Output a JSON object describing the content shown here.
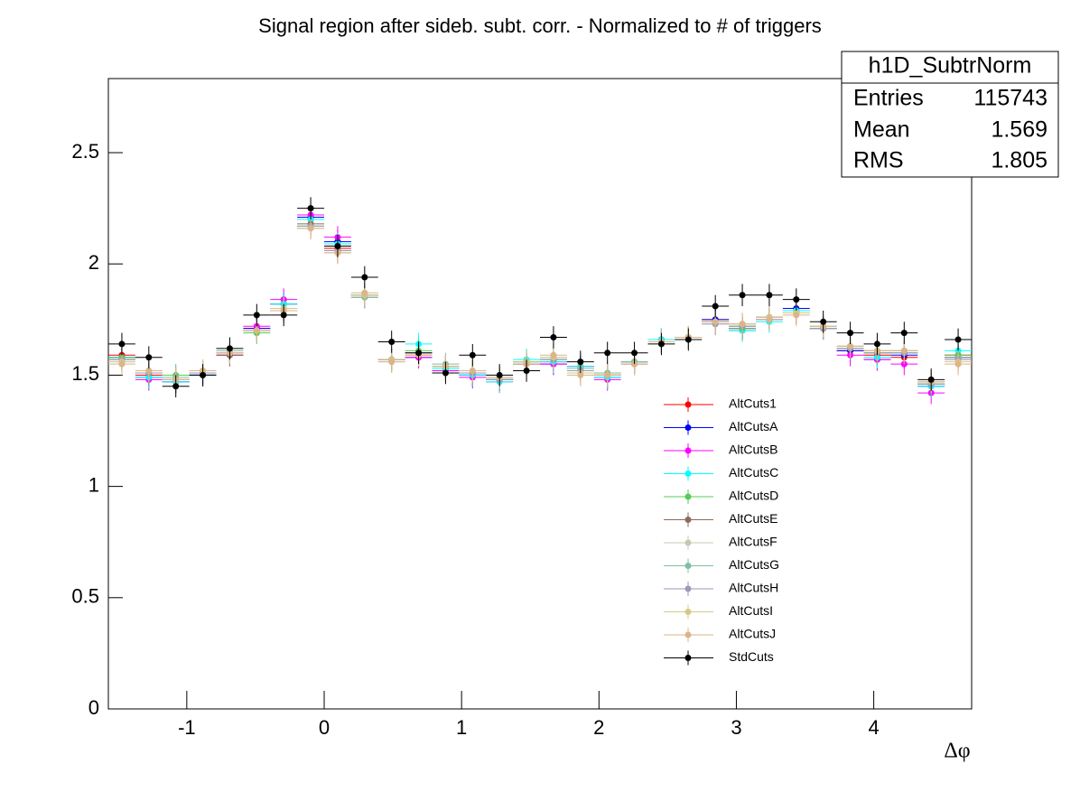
{
  "chart_data": {
    "type": "histogram",
    "title": "Signal region after sideb. subt. corr. - Normalized to # of triggers",
    "xlabel": "Δφ",
    "bins": [
      -1.5708,
      -1.3744,
      -1.1781,
      -0.9817,
      -0.7854,
      -0.589,
      -0.3927,
      -0.1963,
      0,
      0.1963,
      0.3927,
      0.589,
      0.7854,
      0.9817,
      1.1781,
      1.3744,
      1.5708,
      1.7671,
      1.9635,
      2.1598,
      2.3562,
      2.5525,
      2.7489,
      2.9452,
      3.1416,
      3.3379,
      3.5343,
      3.7306,
      3.927,
      4.1233,
      4.3197,
      4.516,
      4.7124
    ],
    "xlim": [
      -1.5708,
      4.7124
    ],
    "ylim": [
      0,
      2.833
    ],
    "xticks": [
      -1,
      0,
      1,
      2,
      3,
      4
    ],
    "yticks": [
      0,
      0.5,
      1,
      1.5,
      2,
      2.5
    ],
    "series": [
      {
        "name": "AltCuts1",
        "color": "#ff0000",
        "error": 0.05,
        "values": [
          1.59,
          1.5,
          1.47,
          1.51,
          1.59,
          1.71,
          1.82,
          2.2,
          2.07,
          1.86,
          1.57,
          1.59,
          1.53,
          1.5,
          1.48,
          1.55,
          1.56,
          1.54,
          1.5,
          1.56,
          1.66,
          1.67,
          1.75,
          1.71,
          1.76,
          1.79,
          1.71,
          1.61,
          1.59,
          1.58,
          1.46,
          1.59
        ]
      },
      {
        "name": "AltCutsA",
        "color": "#0000ff",
        "error": 0.05,
        "values": [
          1.58,
          1.49,
          1.47,
          1.5,
          1.6,
          1.71,
          1.82,
          2.21,
          2.1,
          1.86,
          1.57,
          1.58,
          1.53,
          1.5,
          1.48,
          1.56,
          1.55,
          1.53,
          1.49,
          1.56,
          1.66,
          1.67,
          1.75,
          1.71,
          1.75,
          1.8,
          1.71,
          1.61,
          1.57,
          1.59,
          1.45,
          1.58
        ]
      },
      {
        "name": "AltCutsB",
        "color": "#ff00ff",
        "error": 0.05,
        "values": [
          1.57,
          1.48,
          1.47,
          1.5,
          1.59,
          1.72,
          1.84,
          2.22,
          2.12,
          1.86,
          1.57,
          1.58,
          1.52,
          1.49,
          1.47,
          1.55,
          1.55,
          1.54,
          1.48,
          1.55,
          1.65,
          1.67,
          1.74,
          1.7,
          1.75,
          1.79,
          1.71,
          1.59,
          1.57,
          1.55,
          1.42,
          1.58
        ]
      },
      {
        "name": "AltCutsC",
        "color": "#00ffff",
        "error": 0.05,
        "values": [
          1.58,
          1.49,
          1.47,
          1.5,
          1.6,
          1.7,
          1.82,
          2.2,
          2.09,
          1.86,
          1.57,
          1.64,
          1.53,
          1.5,
          1.47,
          1.57,
          1.56,
          1.54,
          1.49,
          1.56,
          1.66,
          1.67,
          1.74,
          1.7,
          1.74,
          1.79,
          1.71,
          1.62,
          1.58,
          1.6,
          1.45,
          1.61
        ]
      },
      {
        "name": "AltCutsD",
        "color": "#55cc55",
        "error": 0.05,
        "values": [
          1.58,
          1.51,
          1.5,
          1.51,
          1.6,
          1.69,
          1.8,
          2.17,
          2.06,
          1.86,
          1.57,
          1.61,
          1.54,
          1.51,
          1.48,
          1.56,
          1.57,
          1.53,
          1.5,
          1.56,
          1.65,
          1.67,
          1.74,
          1.71,
          1.76,
          1.78,
          1.72,
          1.63,
          1.6,
          1.61,
          1.46,
          1.59
        ]
      },
      {
        "name": "AltCutsE",
        "color": "#8b6b5a",
        "error": 0.05,
        "values": [
          1.57,
          1.51,
          1.48,
          1.51,
          1.59,
          1.7,
          1.79,
          2.18,
          2.06,
          1.85,
          1.57,
          1.6,
          1.54,
          1.51,
          1.48,
          1.55,
          1.57,
          1.53,
          1.5,
          1.56,
          1.65,
          1.67,
          1.74,
          1.72,
          1.76,
          1.78,
          1.71,
          1.62,
          1.6,
          1.6,
          1.47,
          1.58
        ]
      },
      {
        "name": "AltCutsF",
        "color": "#c8c8b0",
        "error": 0.05,
        "values": [
          1.56,
          1.52,
          1.48,
          1.52,
          1.6,
          1.7,
          1.79,
          2.16,
          2.05,
          1.86,
          1.56,
          1.6,
          1.54,
          1.51,
          1.49,
          1.55,
          1.58,
          1.52,
          1.51,
          1.56,
          1.65,
          1.67,
          1.73,
          1.73,
          1.76,
          1.78,
          1.71,
          1.63,
          1.61,
          1.6,
          1.47,
          1.57
        ]
      },
      {
        "name": "AltCutsG",
        "color": "#7fbf9f",
        "error": 0.05,
        "values": [
          1.57,
          1.51,
          1.49,
          1.51,
          1.61,
          1.7,
          1.8,
          2.17,
          2.06,
          1.85,
          1.57,
          1.6,
          1.55,
          1.51,
          1.48,
          1.55,
          1.57,
          1.53,
          1.51,
          1.56,
          1.65,
          1.67,
          1.74,
          1.72,
          1.76,
          1.78,
          1.71,
          1.62,
          1.61,
          1.61,
          1.46,
          1.58
        ]
      },
      {
        "name": "AltCutsH",
        "color": "#9999bb",
        "error": 0.05,
        "values": [
          1.57,
          1.51,
          1.48,
          1.51,
          1.6,
          1.7,
          1.79,
          2.17,
          2.06,
          1.86,
          1.57,
          1.6,
          1.54,
          1.51,
          1.48,
          1.55,
          1.57,
          1.52,
          1.5,
          1.55,
          1.65,
          1.67,
          1.73,
          1.72,
          1.76,
          1.78,
          1.71,
          1.62,
          1.6,
          1.6,
          1.46,
          1.57
        ]
      },
      {
        "name": "AltCutsI",
        "color": "#d4c98a",
        "error": 0.05,
        "values": [
          1.56,
          1.52,
          1.48,
          1.52,
          1.6,
          1.7,
          1.8,
          2.16,
          2.05,
          1.86,
          1.57,
          1.59,
          1.54,
          1.52,
          1.49,
          1.56,
          1.58,
          1.51,
          1.5,
          1.55,
          1.65,
          1.67,
          1.74,
          1.73,
          1.76,
          1.78,
          1.72,
          1.63,
          1.61,
          1.61,
          1.47,
          1.56
        ]
      },
      {
        "name": "AltCutsJ",
        "color": "#dbb588",
        "error": 0.05,
        "values": [
          1.55,
          1.52,
          1.48,
          1.52,
          1.6,
          1.7,
          1.79,
          2.16,
          2.05,
          1.87,
          1.56,
          1.59,
          1.54,
          1.52,
          1.49,
          1.55,
          1.59,
          1.5,
          1.5,
          1.55,
          1.65,
          1.67,
          1.74,
          1.73,
          1.75,
          1.77,
          1.72,
          1.63,
          1.61,
          1.61,
          1.47,
          1.55
        ]
      },
      {
        "name": "StdCuts",
        "color": "#000000",
        "error": 0.05,
        "values": [
          1.64,
          1.58,
          1.45,
          1.5,
          1.62,
          1.77,
          1.77,
          2.25,
          2.08,
          1.94,
          1.65,
          1.6,
          1.51,
          1.59,
          1.5,
          1.52,
          1.67,
          1.56,
          1.6,
          1.6,
          1.64,
          1.66,
          1.81,
          1.86,
          1.86,
          1.84,
          1.74,
          1.69,
          1.64,
          1.69,
          1.48,
          1.66
        ]
      }
    ],
    "stats": {
      "title": "h1D_SubtrNorm",
      "rows": [
        [
          "Entries",
          115743
        ],
        [
          "Mean",
          1.569
        ],
        [
          "RMS",
          1.805
        ]
      ]
    }
  }
}
